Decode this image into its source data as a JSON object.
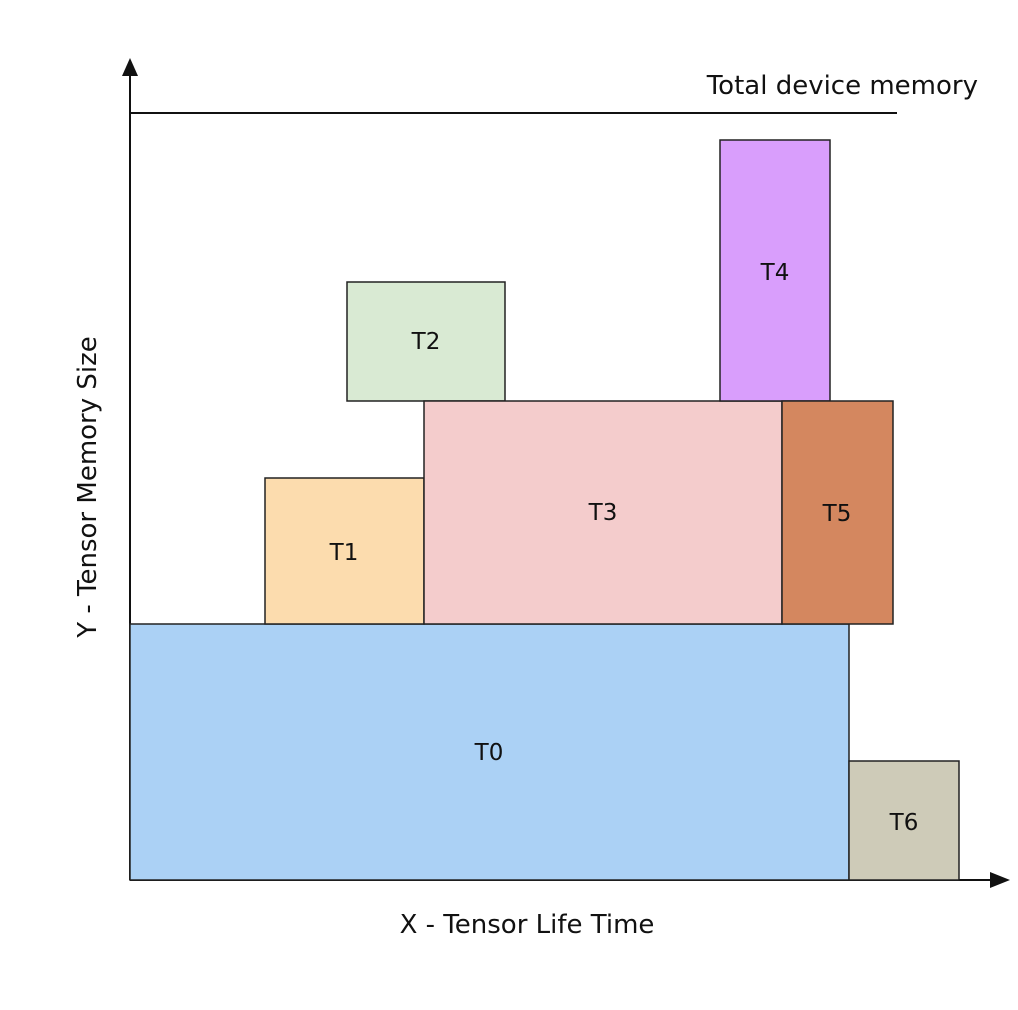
{
  "diagram": {
    "y_axis_label": "Y - Tensor Memory Size",
    "x_axis_label": "X - Tensor Life Time",
    "limit_label": "Total device memory",
    "tensors": [
      {
        "id": "T0",
        "label": "T0",
        "color": "#abd1f5"
      },
      {
        "id": "T1",
        "label": "T1",
        "color": "#fcdcae"
      },
      {
        "id": "T2",
        "label": "T2",
        "color": "#d9ead3"
      },
      {
        "id": "T3",
        "label": "T3",
        "color": "#f4cccc"
      },
      {
        "id": "T4",
        "label": "T4",
        "color": "#d99efc"
      },
      {
        "id": "T5",
        "label": "T5",
        "color": "#d4875f"
      },
      {
        "id": "T6",
        "label": "T6",
        "color": "#cecbb8"
      }
    ]
  }
}
